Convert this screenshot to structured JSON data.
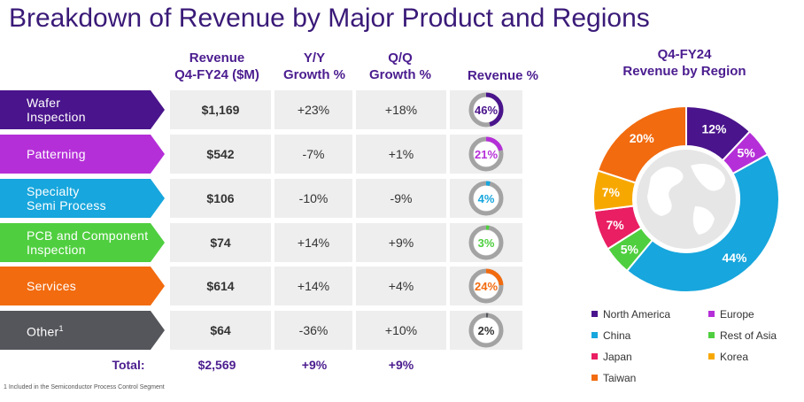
{
  "title": "Breakdown of Revenue by Major Product and Regions",
  "headers": {
    "revenue": [
      "Revenue",
      "Q4-FY24 ($M)"
    ],
    "yy": [
      "Y/Y",
      "Growth %"
    ],
    "qq": [
      "Q/Q",
      "Growth %"
    ],
    "pct": "Revenue %"
  },
  "rows": [
    {
      "label_lines": [
        "Wafer",
        "Inspection"
      ],
      "sup": "",
      "revenue": "$1,169",
      "yy": "+23%",
      "qq": "+18%",
      "pct": 46,
      "pct_label": "46%",
      "color": "#4a148c"
    },
    {
      "label_lines": [
        "Patterning"
      ],
      "sup": "",
      "revenue": "$542",
      "yy": "-7%",
      "qq": "+1%",
      "pct": 21,
      "pct_label": "21%",
      "color": "#b52fd8"
    },
    {
      "label_lines": [
        "Specialty",
        "Semi Process"
      ],
      "sup": "",
      "revenue": "$106",
      "yy": "-10%",
      "qq": "-9%",
      "pct": 4,
      "pct_label": "4%",
      "color": "#17a6dd"
    },
    {
      "label_lines": [
        "PCB and Component",
        "Inspection"
      ],
      "sup": "",
      "revenue": "$74",
      "yy": "+14%",
      "qq": "+9%",
      "pct": 3,
      "pct_label": "3%",
      "color": "#4fcf3f"
    },
    {
      "label_lines": [
        "Services"
      ],
      "sup": "",
      "revenue": "$614",
      "yy": "+14%",
      "qq": "+4%",
      "pct": 24,
      "pct_label": "24%",
      "color": "#f26b0f"
    },
    {
      "label_lines": [
        "Other"
      ],
      "sup": "1",
      "revenue": "$64",
      "yy": "-36%",
      "qq": "+10%",
      "pct": 2,
      "pct_label": "2%",
      "color": "#55565b"
    }
  ],
  "totals": {
    "label": "Total:",
    "revenue": "$2,569",
    "yy": "+9%",
    "qq": "+9%"
  },
  "footnote": "1 Included in the Semiconductor Process Control Segment",
  "region_chart_title": [
    "Q4-FY24",
    "Revenue by Region"
  ],
  "chart_data": [
    {
      "type": "table",
      "title": "Breakdown of Revenue by Major Product and Regions",
      "columns": [
        "Revenue Q4-FY24 ($M)",
        "Y/Y Growth %",
        "Q/Q Growth %",
        "Revenue %"
      ],
      "categories": [
        "Wafer Inspection",
        "Patterning",
        "Specialty Semi Process",
        "PCB and Component Inspection",
        "Services",
        "Other"
      ],
      "revenue_musd": [
        1169,
        542,
        106,
        74,
        614,
        64
      ],
      "yy_growth_pct": [
        23,
        -7,
        -10,
        14,
        14,
        -36
      ],
      "qq_growth_pct": [
        18,
        1,
        -9,
        9,
        4,
        10
      ],
      "revenue_pct": [
        46,
        21,
        4,
        3,
        24,
        2
      ],
      "total": {
        "revenue_musd": 2569,
        "yy_growth_pct": 9,
        "qq_growth_pct": 9
      }
    },
    {
      "type": "pie",
      "title": "Q4-FY24 Revenue by Region",
      "legend_position": "bottom",
      "categories": [
        "North America",
        "Europe",
        "China",
        "Rest of Asia",
        "Japan",
        "Korea",
        "Taiwan"
      ],
      "values": [
        12,
        5,
        44,
        5,
        7,
        7,
        20
      ],
      "labels": [
        "12%",
        "5%",
        "44%",
        "5%",
        "7%",
        "7%",
        "20%"
      ],
      "colors": [
        "#4a148c",
        "#b52fd8",
        "#17a6dd",
        "#4fcf3f",
        "#e91e63",
        "#f7a800",
        "#f26b0f"
      ]
    }
  ]
}
